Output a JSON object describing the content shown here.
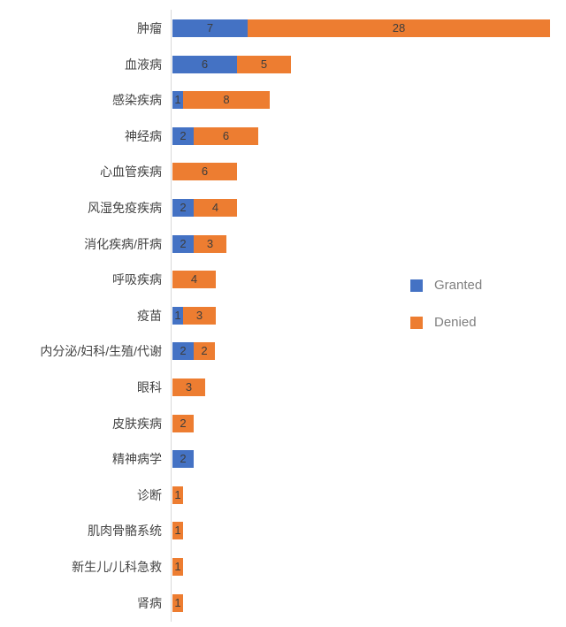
{
  "chart_data": {
    "type": "bar",
    "orientation": "horizontal",
    "stacked": true,
    "title": "",
    "xlabel": "",
    "ylabel": "",
    "xlim": [
      0,
      35
    ],
    "grid": false,
    "data_labels": true,
    "legend_position": "right",
    "categories": [
      "肿瘤",
      "血液病",
      "感染疾病",
      "神经病",
      "心血管疾病",
      "风湿免疫疾病",
      "消化疾病/肝病",
      "呼吸疾病",
      "疫苗",
      "内分泌/妇科/生殖/代谢",
      "眼科",
      "皮肤疾病",
      "精神病学",
      "诊断",
      "肌肉骨骼系统",
      "新生儿/儿科急救",
      "肾病"
    ],
    "series": [
      {
        "name": "Granted",
        "color": "#4472C4",
        "values": [
          7,
          6,
          1,
          2,
          0,
          2,
          2,
          0,
          1,
          2,
          0,
          0,
          2,
          0,
          0,
          0,
          0
        ]
      },
      {
        "name": "Denied",
        "color": "#ED7D31",
        "values": [
          28,
          5,
          8,
          6,
          6,
          4,
          3,
          4,
          3,
          2,
          3,
          2,
          0,
          1,
          1,
          1,
          1
        ]
      }
    ]
  },
  "legend": {
    "items": [
      {
        "label": "Granted",
        "color": "#4472C4"
      },
      {
        "label": "Denied",
        "color": "#ED7D31"
      }
    ]
  },
  "colors": {
    "granted": "#4472C4",
    "denied": "#ED7D31",
    "axis_line": "#d9d9d9",
    "category_text": "#444444",
    "data_label_text": "#3d3d3d",
    "legend_text": "#7f7f7f"
  }
}
